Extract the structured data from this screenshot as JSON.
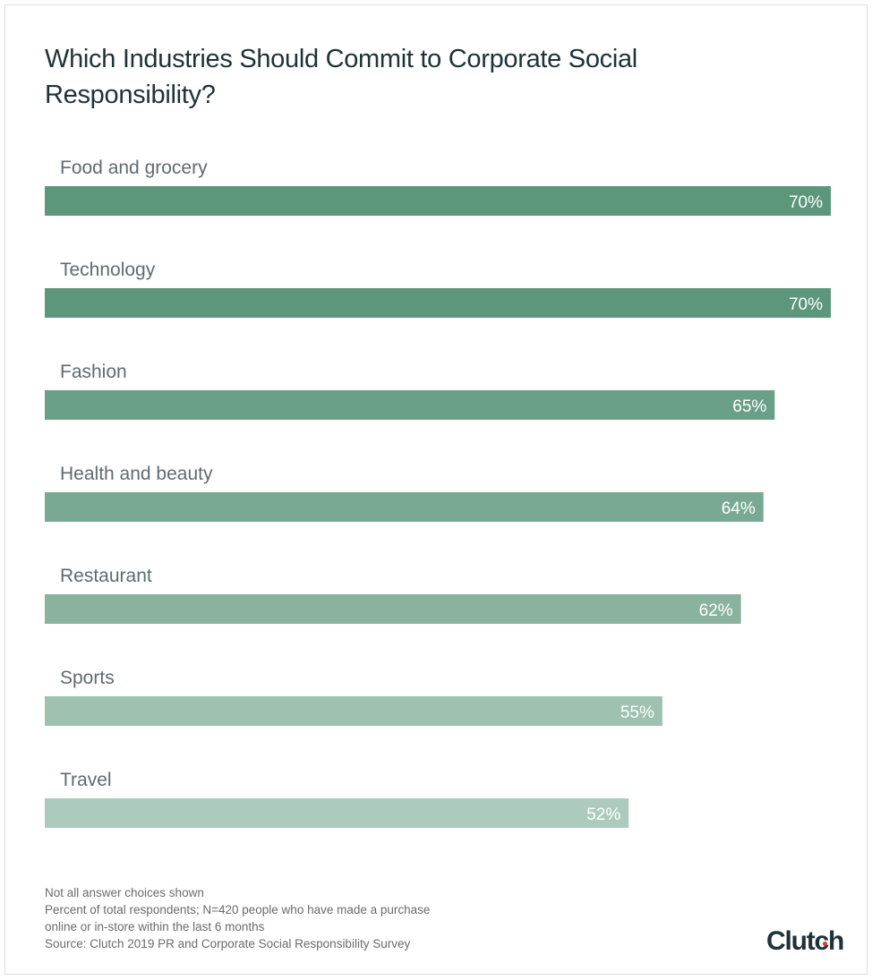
{
  "chart_data": {
    "type": "bar",
    "orientation": "horizontal",
    "title": "Which Industries Should Commit to Corporate Social Responsibility?",
    "categories": [
      "Food and grocery",
      "Technology",
      "Fashion",
      "Health and beauty",
      "Restaurant",
      "Sports",
      "Travel"
    ],
    "values": [
      70,
      70,
      65,
      64,
      62,
      55,
      52
    ],
    "value_labels": [
      "70%",
      "70%",
      "65%",
      "64%",
      "62%",
      "55%",
      "52%"
    ],
    "xlim": [
      0,
      70
    ],
    "grid": false,
    "colors": [
      "#5c967b",
      "#5c967b",
      "#6ba088",
      "#7aa993",
      "#8ab39f",
      "#9ec1b0",
      "#adcbbd"
    ],
    "label_color": "#ffffff",
    "category_label_color": "#5f6b70"
  },
  "notes": [
    "Not all answer choices shown",
    "Percent of total respondents; N=420 people who have made a purchase",
    "online or in-store within the last 6 months",
    "Source: Clutch 2019 PR and Corporate Social Responsibility Survey"
  ],
  "logo": {
    "text": "Clutch",
    "accent": "#e33a2a"
  }
}
